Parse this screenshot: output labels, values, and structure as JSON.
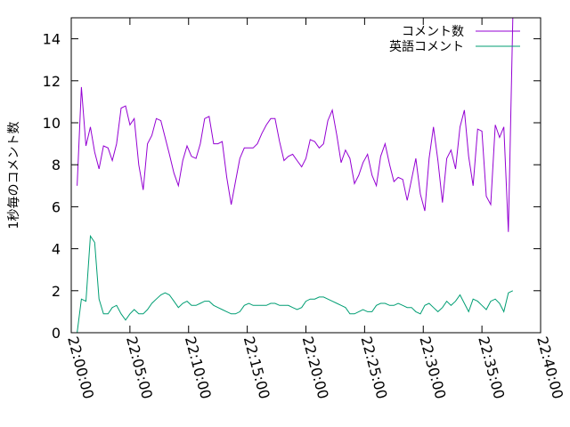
{
  "chart_data": {
    "type": "line",
    "title": "",
    "xlabel": "",
    "ylabel": "1秒毎のコメント数",
    "xlim": [
      "22:00:00",
      "22:40:00"
    ],
    "ylim": [
      0,
      15
    ],
    "yticks": [
      0,
      2,
      4,
      6,
      8,
      10,
      12,
      14
    ],
    "xticks": [
      "22:00:00",
      "22:05:00",
      "22:10:00",
      "22:15:00",
      "22:20:00",
      "22:25:00",
      "22:30:00",
      "22:35:00",
      "22:40:00"
    ],
    "grid": false,
    "legend_position": "top-right",
    "series": [
      {
        "name": "コメント数",
        "color": "#9400d3",
        "points": [
          [
            "22:00:30",
            7.0
          ],
          [
            "22:00:52",
            11.7
          ],
          [
            "22:01:15",
            8.9
          ],
          [
            "22:01:38",
            9.8
          ],
          [
            "22:02:00",
            8.6
          ],
          [
            "22:02:22",
            7.8
          ],
          [
            "22:02:45",
            8.9
          ],
          [
            "22:03:08",
            8.8
          ],
          [
            "22:03:30",
            8.2
          ],
          [
            "22:03:52",
            9.0
          ],
          [
            "22:04:15",
            10.7
          ],
          [
            "22:04:38",
            10.8
          ],
          [
            "22:05:00",
            9.9
          ],
          [
            "22:05:22",
            10.2
          ],
          [
            "22:05:45",
            8.0
          ],
          [
            "22:06:08",
            6.8
          ],
          [
            "22:06:30",
            9.0
          ],
          [
            "22:06:52",
            9.4
          ],
          [
            "22:07:15",
            10.2
          ],
          [
            "22:07:38",
            10.1
          ],
          [
            "22:08:00",
            9.3
          ],
          [
            "22:08:22",
            8.5
          ],
          [
            "22:08:45",
            7.6
          ],
          [
            "22:09:08",
            7.0
          ],
          [
            "22:09:30",
            8.2
          ],
          [
            "22:09:52",
            8.9
          ],
          [
            "22:10:15",
            8.4
          ],
          [
            "22:10:38",
            8.3
          ],
          [
            "22:11:00",
            9.0
          ],
          [
            "22:11:22",
            10.2
          ],
          [
            "22:11:45",
            10.3
          ],
          [
            "22:12:08",
            9.0
          ],
          [
            "22:12:30",
            9.0
          ],
          [
            "22:12:52",
            9.1
          ],
          [
            "22:13:15",
            7.4
          ],
          [
            "22:13:38",
            6.1
          ],
          [
            "22:14:00",
            7.2
          ],
          [
            "22:14:22",
            8.3
          ],
          [
            "22:14:45",
            8.8
          ],
          [
            "22:15:08",
            8.8
          ],
          [
            "22:15:30",
            8.8
          ],
          [
            "22:15:52",
            9.0
          ],
          [
            "22:16:15",
            9.5
          ],
          [
            "22:16:38",
            9.9
          ],
          [
            "22:17:00",
            10.2
          ],
          [
            "22:17:22",
            10.2
          ],
          [
            "22:17:45",
            9.1
          ],
          [
            "22:18:08",
            8.2
          ],
          [
            "22:18:30",
            8.4
          ],
          [
            "22:18:52",
            8.5
          ],
          [
            "22:19:15",
            8.2
          ],
          [
            "22:19:38",
            7.9
          ],
          [
            "22:20:00",
            8.3
          ],
          [
            "22:20:22",
            9.2
          ],
          [
            "22:20:45",
            9.1
          ],
          [
            "22:21:08",
            8.8
          ],
          [
            "22:21:30",
            9.0
          ],
          [
            "22:21:52",
            10.1
          ],
          [
            "22:22:15",
            10.6
          ],
          [
            "22:22:38",
            9.4
          ],
          [
            "22:23:00",
            8.1
          ],
          [
            "22:23:22",
            8.7
          ],
          [
            "22:23:45",
            8.3
          ],
          [
            "22:24:08",
            7.1
          ],
          [
            "22:24:30",
            7.5
          ],
          [
            "22:24:52",
            8.1
          ],
          [
            "22:25:15",
            8.5
          ],
          [
            "22:25:38",
            7.5
          ],
          [
            "22:26:00",
            7.0
          ],
          [
            "22:26:22",
            8.4
          ],
          [
            "22:26:45",
            9.0
          ],
          [
            "22:27:08",
            8.0
          ],
          [
            "22:27:30",
            7.2
          ],
          [
            "22:27:52",
            7.4
          ],
          [
            "22:28:15",
            7.3
          ],
          [
            "22:28:38",
            6.3
          ],
          [
            "22:29:00",
            7.3
          ],
          [
            "22:29:22",
            8.3
          ],
          [
            "22:29:45",
            6.6
          ],
          [
            "22:30:08",
            5.8
          ],
          [
            "22:30:30",
            8.3
          ],
          [
            "22:30:52",
            9.8
          ],
          [
            "22:31:15",
            8.2
          ],
          [
            "22:31:38",
            6.2
          ],
          [
            "22:32:00",
            8.3
          ],
          [
            "22:32:22",
            8.7
          ],
          [
            "22:32:45",
            7.8
          ],
          [
            "22:33:08",
            9.8
          ],
          [
            "22:33:30",
            10.6
          ],
          [
            "22:33:52",
            8.4
          ],
          [
            "22:34:15",
            7.0
          ],
          [
            "22:34:38",
            9.7
          ],
          [
            "22:35:00",
            9.6
          ],
          [
            "22:35:22",
            6.5
          ],
          [
            "22:35:45",
            6.1
          ],
          [
            "22:36:08",
            9.9
          ],
          [
            "22:36:30",
            9.3
          ],
          [
            "22:36:52",
            9.8
          ],
          [
            "22:37:15",
            4.8
          ],
          [
            "22:37:38",
            15.0
          ]
        ]
      },
      {
        "name": "英語コメント",
        "color": "#009e73",
        "points": [
          [
            "22:00:30",
            0.0
          ],
          [
            "22:00:52",
            1.6
          ],
          [
            "22:01:15",
            1.5
          ],
          [
            "22:01:38",
            4.6
          ],
          [
            "22:02:00",
            4.3
          ],
          [
            "22:02:22",
            1.6
          ],
          [
            "22:02:45",
            0.9
          ],
          [
            "22:03:08",
            0.9
          ],
          [
            "22:03:30",
            1.2
          ],
          [
            "22:03:52",
            1.3
          ],
          [
            "22:04:15",
            0.9
          ],
          [
            "22:04:38",
            0.6
          ],
          [
            "22:05:00",
            0.9
          ],
          [
            "22:05:22",
            1.1
          ],
          [
            "22:05:45",
            0.9
          ],
          [
            "22:06:08",
            0.9
          ],
          [
            "22:06:30",
            1.1
          ],
          [
            "22:06:52",
            1.4
          ],
          [
            "22:07:15",
            1.6
          ],
          [
            "22:07:38",
            1.8
          ],
          [
            "22:08:00",
            1.9
          ],
          [
            "22:08:22",
            1.8
          ],
          [
            "22:08:45",
            1.5
          ],
          [
            "22:09:08",
            1.2
          ],
          [
            "22:09:30",
            1.4
          ],
          [
            "22:09:52",
            1.5
          ],
          [
            "22:10:15",
            1.3
          ],
          [
            "22:10:38",
            1.3
          ],
          [
            "22:11:00",
            1.4
          ],
          [
            "22:11:22",
            1.5
          ],
          [
            "22:11:45",
            1.5
          ],
          [
            "22:12:08",
            1.3
          ],
          [
            "22:12:30",
            1.2
          ],
          [
            "22:12:52",
            1.1
          ],
          [
            "22:13:15",
            1.0
          ],
          [
            "22:13:38",
            0.9
          ],
          [
            "22:14:00",
            0.9
          ],
          [
            "22:14:22",
            1.0
          ],
          [
            "22:14:45",
            1.3
          ],
          [
            "22:15:08",
            1.4
          ],
          [
            "22:15:30",
            1.3
          ],
          [
            "22:15:52",
            1.3
          ],
          [
            "22:16:15",
            1.3
          ],
          [
            "22:16:38",
            1.3
          ],
          [
            "22:17:00",
            1.4
          ],
          [
            "22:17:22",
            1.4
          ],
          [
            "22:17:45",
            1.3
          ],
          [
            "22:18:08",
            1.3
          ],
          [
            "22:18:30",
            1.3
          ],
          [
            "22:18:52",
            1.2
          ],
          [
            "22:19:15",
            1.1
          ],
          [
            "22:19:38",
            1.2
          ],
          [
            "22:20:00",
            1.5
          ],
          [
            "22:20:22",
            1.6
          ],
          [
            "22:20:45",
            1.6
          ],
          [
            "22:21:08",
            1.7
          ],
          [
            "22:21:30",
            1.7
          ],
          [
            "22:21:52",
            1.6
          ],
          [
            "22:22:15",
            1.5
          ],
          [
            "22:22:38",
            1.4
          ],
          [
            "22:23:00",
            1.3
          ],
          [
            "22:23:22",
            1.2
          ],
          [
            "22:23:45",
            0.9
          ],
          [
            "22:24:08",
            0.9
          ],
          [
            "22:24:30",
            1.0
          ],
          [
            "22:24:52",
            1.1
          ],
          [
            "22:25:15",
            1.0
          ],
          [
            "22:25:38",
            1.0
          ],
          [
            "22:26:00",
            1.3
          ],
          [
            "22:26:22",
            1.4
          ],
          [
            "22:26:45",
            1.4
          ],
          [
            "22:27:08",
            1.3
          ],
          [
            "22:27:30",
            1.3
          ],
          [
            "22:27:52",
            1.4
          ],
          [
            "22:28:15",
            1.3
          ],
          [
            "22:28:38",
            1.2
          ],
          [
            "22:29:00",
            1.2
          ],
          [
            "22:29:22",
            1.0
          ],
          [
            "22:29:45",
            0.9
          ],
          [
            "22:30:08",
            1.3
          ],
          [
            "22:30:30",
            1.4
          ],
          [
            "22:30:52",
            1.2
          ],
          [
            "22:31:15",
            1.0
          ],
          [
            "22:31:38",
            1.2
          ],
          [
            "22:32:00",
            1.5
          ],
          [
            "22:32:22",
            1.3
          ],
          [
            "22:32:45",
            1.5
          ],
          [
            "22:33:08",
            1.8
          ],
          [
            "22:33:30",
            1.4
          ],
          [
            "22:33:52",
            1.0
          ],
          [
            "22:34:15",
            1.6
          ],
          [
            "22:34:38",
            1.5
          ],
          [
            "22:35:00",
            1.3
          ],
          [
            "22:35:22",
            1.1
          ],
          [
            "22:35:45",
            1.5
          ],
          [
            "22:36:08",
            1.6
          ],
          [
            "22:36:30",
            1.4
          ],
          [
            "22:36:52",
            1.0
          ],
          [
            "22:37:15",
            1.9
          ],
          [
            "22:37:38",
            2.0
          ]
        ]
      }
    ]
  }
}
